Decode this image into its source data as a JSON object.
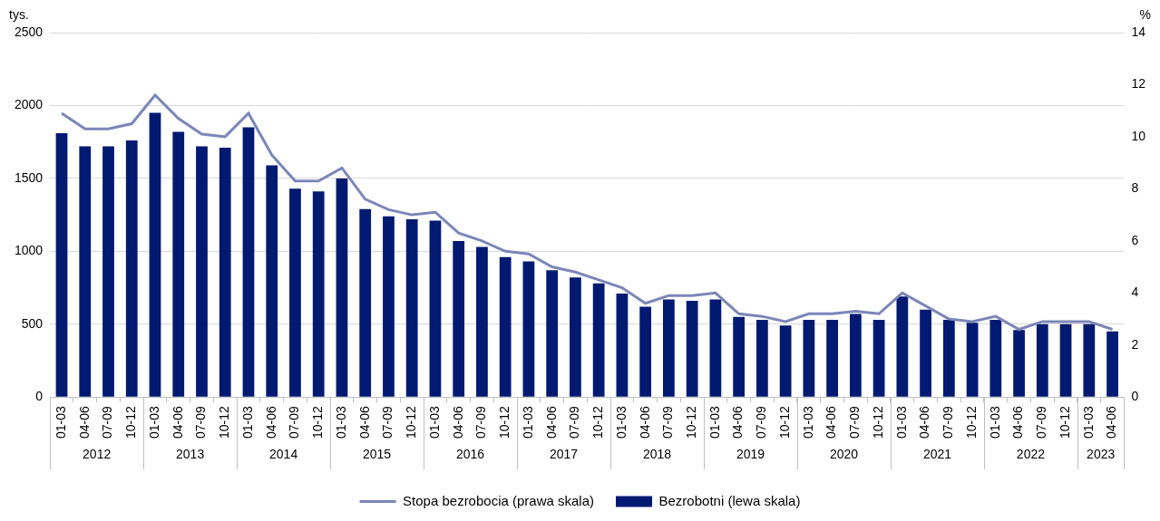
{
  "chart_data": {
    "type": "bar",
    "ylabel": "tys.",
    "y2label": "%",
    "categories": [
      "01-03",
      "04-06",
      "07-09",
      "10-12",
      "01-03",
      "04-06",
      "07-09",
      "10-12",
      "01-03",
      "04-06",
      "07-09",
      "10-12",
      "01-03",
      "04-06",
      "07-09",
      "10-12",
      "01-03",
      "04-06",
      "07-09",
      "10-12",
      "01-03",
      "04-06",
      "07-09",
      "10-12",
      "01-03",
      "04-06",
      "07-09",
      "10-12",
      "01-03",
      "04-06",
      "07-09",
      "10-12",
      "01-03",
      "04-06",
      "07-09",
      "10-12",
      "01-03",
      "04-06",
      "07-09",
      "10-12",
      "01-03",
      "04-06",
      "07-09",
      "10-12",
      "01-03",
      "04-06"
    ],
    "groups": [
      {
        "label": "2012",
        "count": 4
      },
      {
        "label": "2013",
        "count": 4
      },
      {
        "label": "2014",
        "count": 4
      },
      {
        "label": "2015",
        "count": 4
      },
      {
        "label": "2016",
        "count": 4
      },
      {
        "label": "2017",
        "count": 4
      },
      {
        "label": "2018",
        "count": 4
      },
      {
        "label": "2019",
        "count": 4
      },
      {
        "label": "2020",
        "count": 4
      },
      {
        "label": "2021",
        "count": 4
      },
      {
        "label": "2022",
        "count": 4
      },
      {
        "label": "2023",
        "count": 2
      }
    ],
    "series": [
      {
        "name": "Bezrobotni (lewa skala)",
        "type": "bar",
        "color": "#001a72",
        "values": [
          1810,
          1720,
          1720,
          1760,
          1950,
          1820,
          1720,
          1710,
          1850,
          1590,
          1430,
          1410,
          1500,
          1290,
          1240,
          1220,
          1210,
          1070,
          1030,
          960,
          930,
          870,
          820,
          780,
          710,
          620,
          670,
          660,
          670,
          550,
          530,
          490,
          530,
          530,
          570,
          530,
          690,
          600,
          530,
          510,
          530,
          460,
          500,
          500,
          500,
          450
        ]
      },
      {
        "name": "Stopa bezrobocia (prawa skala)",
        "type": "line",
        "axis": "y2",
        "color": "#7b86b8",
        "marker": "none",
        "line_style": "solid",
        "values": [
          10.9,
          10.3,
          10.3,
          10.5,
          11.6,
          10.7,
          10.1,
          10.0,
          10.9,
          9.3,
          8.3,
          8.3,
          8.8,
          7.6,
          7.2,
          7.0,
          7.1,
          6.3,
          6.0,
          5.6,
          5.5,
          5.0,
          4.8,
          4.5,
          4.2,
          3.6,
          3.9,
          3.9,
          4.0,
          3.2,
          3.1,
          2.9,
          3.2,
          3.2,
          3.3,
          3.2,
          4.0,
          3.5,
          3.0,
          2.9,
          3.1,
          2.6,
          2.9,
          2.9,
          2.9,
          2.6
        ]
      }
    ],
    "ylim": [
      0,
      2500
    ],
    "yticks": [
      0,
      500,
      1000,
      1500,
      2000,
      2500
    ],
    "y2lim": [
      0,
      14
    ],
    "y2ticks": [
      0,
      2,
      4,
      6,
      8,
      10,
      12,
      14
    ],
    "grid": true,
    "legend": "bottom"
  }
}
